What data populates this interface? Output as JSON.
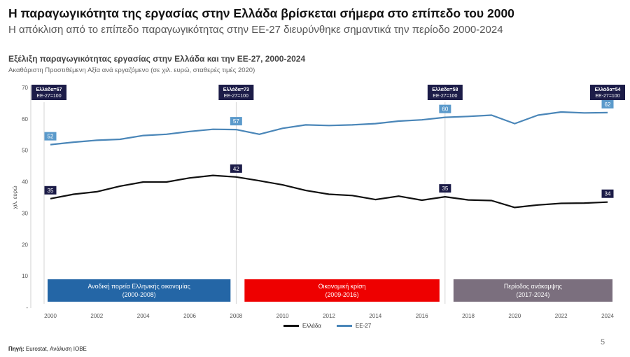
{
  "header": {
    "title": "Η παραγωγικότητα της εργασίας στην Ελλάδα βρίσκεται σήμερα στο επίπεδο του 2000",
    "subtitle": "Η απόκλιση από το επίπεδο παραγωγικότητας στην ΕΕ-27 διευρύνθηκε σημαντικά την περίοδο 2000-2024"
  },
  "footer": {
    "source_label": "Πηγή:",
    "source_text": " Eurostat, Ανάλυση ΙΟΒΕ",
    "page_number": "5"
  },
  "chart_data": {
    "type": "line",
    "title": "Εξέλιξη παραγωγικότητας εργασίας στην Ελλάδα και την ΕΕ-27, 2000-2024",
    "subtitle": "Ακαθάριστη Προστιθέμενη Αξία ανά εργαζόμενο (σε χιλ. ευρώ, σταθερές τιμές 2020)",
    "ylabel": "χιλ. ευρώ",
    "xlabel": "",
    "ylim": [
      0,
      70
    ],
    "yticks": [
      "-",
      "10",
      "20",
      "30",
      "40",
      "50",
      "60",
      "70"
    ],
    "xticks": [
      2000,
      2002,
      2004,
      2006,
      2008,
      2010,
      2012,
      2014,
      2016,
      2018,
      2020,
      2022,
      2024
    ],
    "x": [
      2000,
      2001,
      2002,
      2003,
      2004,
      2005,
      2006,
      2007,
      2008,
      2009,
      2010,
      2011,
      2012,
      2013,
      2014,
      2015,
      2016,
      2017,
      2018,
      2019,
      2020,
      2021,
      2022,
      2023,
      2024
    ],
    "series": [
      {
        "name": "Ελλάδα",
        "color": "#111111",
        "values": [
          34.6,
          36.0,
          36.8,
          38.6,
          39.9,
          39.9,
          41.2,
          42.0,
          41.5,
          40.3,
          39.0,
          37.2,
          36.0,
          35.6,
          34.3,
          35.4,
          34.1,
          35.2,
          34.2,
          34.0,
          31.8,
          32.6,
          33.1,
          33.2,
          33.5
        ],
        "data_labels": [
          {
            "year": 2000,
            "value": 34.6,
            "text": "35"
          },
          {
            "year": 2008,
            "value": 41.5,
            "text": "42"
          },
          {
            "year": 2017,
            "value": 35.2,
            "text": "35"
          },
          {
            "year": 2024,
            "value": 33.5,
            "text": "34"
          }
        ]
      },
      {
        "name": "ΕΕ-27",
        "color": "#4a86b8",
        "values": [
          51.8,
          52.6,
          53.2,
          53.5,
          54.7,
          55.1,
          56.0,
          56.7,
          56.6,
          55.1,
          57.0,
          58.1,
          57.9,
          58.1,
          58.5,
          59.3,
          59.7,
          60.5,
          60.8,
          61.2,
          58.5,
          61.2,
          62.2,
          61.9,
          62.0
        ],
        "data_labels": [
          {
            "year": 2000,
            "value": 51.8,
            "text": "52"
          },
          {
            "year": 2008,
            "value": 56.6,
            "text": "57"
          },
          {
            "year": 2017,
            "value": 60.5,
            "text": "60"
          },
          {
            "year": 2024,
            "value": 62.0,
            "text": "62"
          }
        ]
      }
    ],
    "callouts": [
      {
        "year": 2000,
        "line1": "Ελλάδα=67",
        "line2": "ΕΕ-27=100"
      },
      {
        "year": 2008,
        "line1": "Ελλάδα=73",
        "line2": "ΕΕ-27=100"
      },
      {
        "year": 2017,
        "line1": "Ελλάδα=58",
        "line2": "ΕΕ-27=100"
      },
      {
        "year": 2024,
        "line1": "Ελλάδα=54",
        "line2": "ΕΕ-27=100"
      }
    ],
    "reference_lines": [
      2000,
      2008,
      2017
    ],
    "periods": [
      {
        "start": 2000,
        "end": 2008,
        "line1": "Ανοδική πορεία Ελληνικής οικονομίας",
        "line2": "(2000-2008)",
        "color": "#2466a6"
      },
      {
        "start": 2008,
        "end": 2017,
        "line1": "Οικονομική κρίση",
        "line2": "(2009-2016)",
        "color": "#ee0000"
      },
      {
        "start": 2017,
        "end": 2024,
        "line1": "Περίοδος ανάκαμψης",
        "line2": "(2017-2024)",
        "color": "#7b6f7e"
      }
    ],
    "legend_position": "bottom-center",
    "grid": false
  }
}
